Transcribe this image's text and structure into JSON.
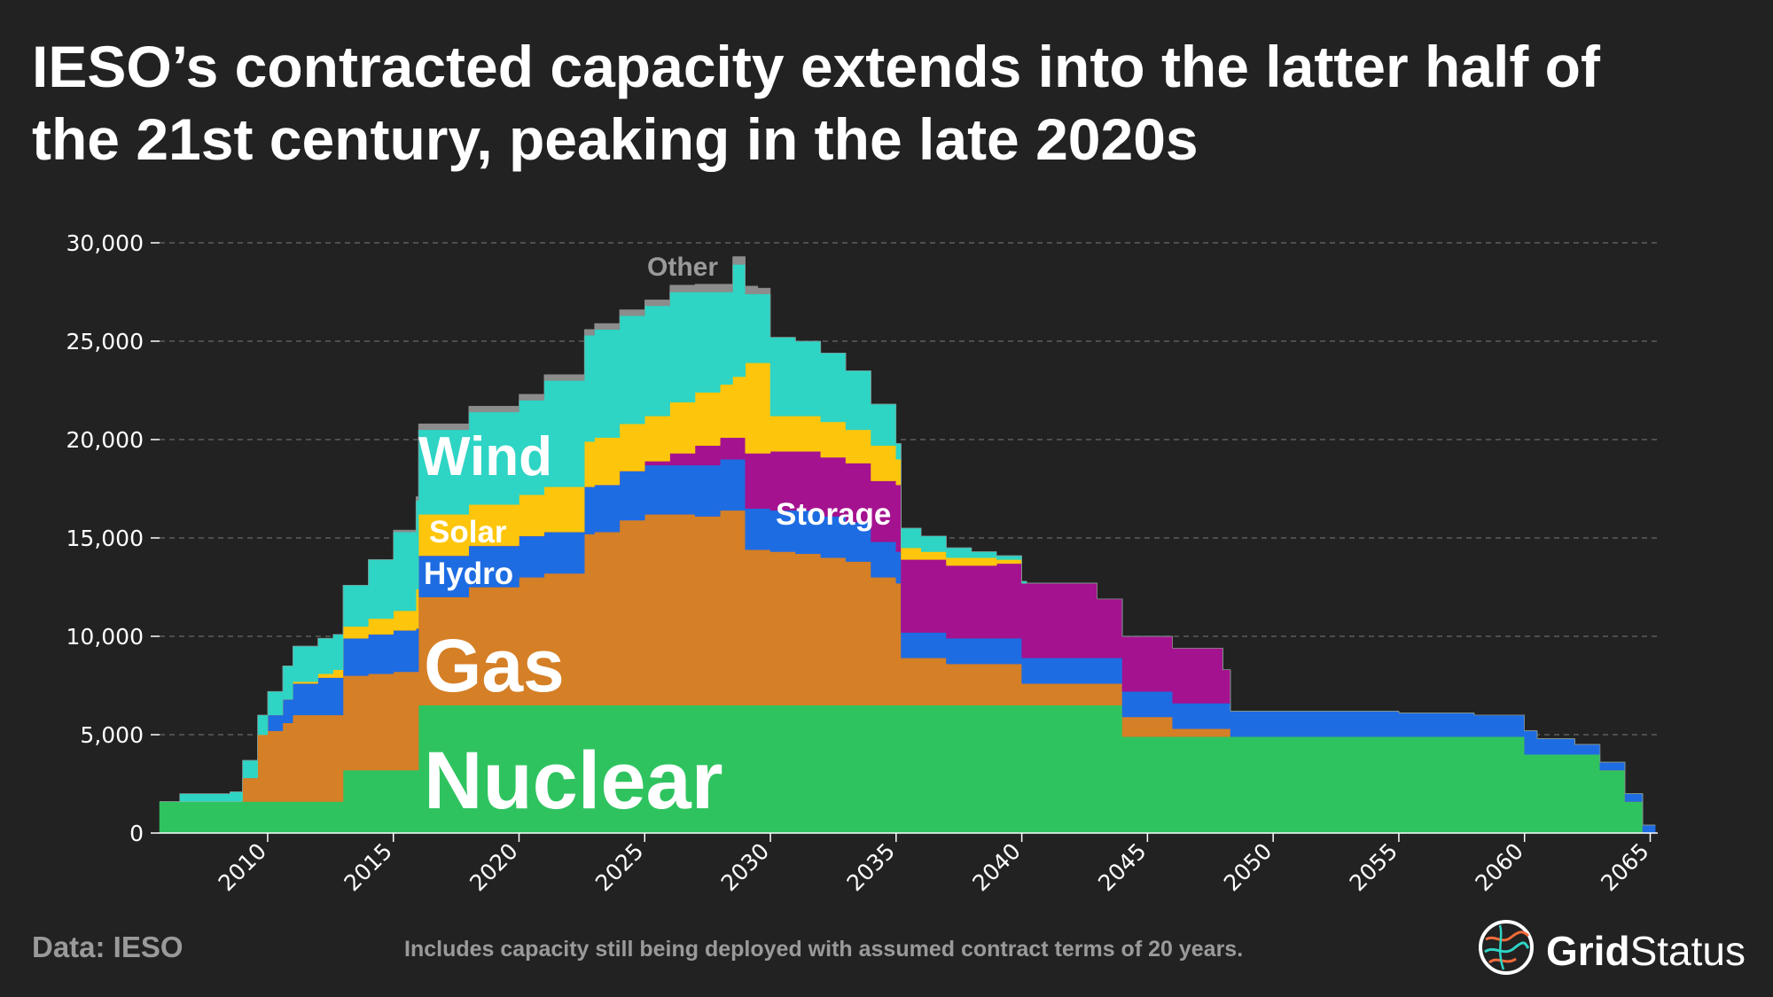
{
  "title": {
    "line1": "IESO’s contracted capacity extends into the latter half of",
    "line2": "the 21st century, peaking in the late 2020s"
  },
  "footer": {
    "source": "Data: IESO",
    "note": "Includes capacity still being deployed with assumed contract terms of 20 years."
  },
  "logo": {
    "word_bold": "Grid",
    "word_light": "Status",
    "icon": "grid-status-logo-icon"
  },
  "chart_data": {
    "type": "area",
    "title": "IESO’s contracted capacity extends into the latter half of the 21st century, peaking in the late 2020s",
    "xlabel": "",
    "ylabel": "",
    "xlim": [
      2005.7,
      2065.3
    ],
    "ylim": [
      0,
      30000
    ],
    "grid": true,
    "stacked": true,
    "step": true,
    "x_ticks": [
      2010,
      2015,
      2020,
      2025,
      2030,
      2035,
      2040,
      2045,
      2050,
      2055,
      2060,
      2065
    ],
    "x_tick_labels": [
      "2010",
      "2015",
      "2020",
      "2025",
      "2030",
      "2035",
      "2040",
      "2045",
      "2050",
      "2055",
      "2060",
      "2065"
    ],
    "y_ticks": [
      0,
      5000,
      10000,
      15000,
      20000,
      25000,
      30000
    ],
    "y_tick_labels": [
      "0",
      "5,000",
      "10,000",
      "15,000",
      "20,000",
      "25,000",
      "30,000"
    ],
    "x": [
      2005.7,
      2006.5,
      2008.5,
      2009.0,
      2009.6,
      2010.0,
      2010.6,
      2011.0,
      2012.0,
      2012.6,
      2013.0,
      2014.0,
      2015.0,
      2015.9,
      2016.0,
      2018.0,
      2020.0,
      2021.0,
      2022.0,
      2022.6,
      2023.0,
      2024.0,
      2025.0,
      2026.0,
      2027.0,
      2028.0,
      2028.5,
      2029.0,
      2029.5,
      2030.0,
      2031.0,
      2032.0,
      2033.0,
      2034.0,
      2035.0,
      2035.2,
      2036.0,
      2037.0,
      2038.0,
      2039.0,
      2040.0,
      2040.2,
      2041.0,
      2043.0,
      2044.0,
      2046.0,
      2048.0,
      2048.3,
      2050.0,
      2052.0,
      2055.0,
      2058.0,
      2059.0,
      2060.0,
      2060.5,
      2062.0,
      2063.0,
      2063.4,
      2064.0,
      2064.7,
      2065.2
    ],
    "series": [
      {
        "name": "Nuclear",
        "label": "Nuclear",
        "color": "#2fc35f",
        "values": [
          1600,
          1600,
          1600,
          1600,
          1600,
          1600,
          1600,
          1600,
          1600,
          1600,
          3200,
          3200,
          3200,
          3200,
          6500,
          6500,
          6500,
          6500,
          6500,
          6500,
          6500,
          6500,
          6500,
          6500,
          6500,
          6500,
          6500,
          6500,
          6500,
          6500,
          6500,
          6500,
          6500,
          6500,
          6500,
          6500,
          6500,
          6500,
          6500,
          6500,
          6500,
          6500,
          6500,
          6500,
          4900,
          4900,
          4900,
          4900,
          4900,
          4900,
          4900,
          4900,
          4900,
          4000,
          4000,
          4000,
          3200,
          3200,
          1600,
          0,
          0
        ]
      },
      {
        "name": "Gas",
        "label": "Gas",
        "color": "#d57f26",
        "values": [
          0,
          0,
          0,
          1200,
          3400,
          3600,
          4000,
          4400,
          4400,
          4400,
          4800,
          4900,
          5000,
          5000,
          5500,
          6000,
          6500,
          6700,
          6700,
          8700,
          8800,
          9400,
          9700,
          9700,
          9600,
          9900,
          9900,
          7900,
          7900,
          7800,
          7700,
          7500,
          7300,
          6500,
          6200,
          2400,
          2400,
          2100,
          2100,
          2100,
          1100,
          1100,
          1100,
          1100,
          1000,
          400,
          400,
          0,
          0,
          0,
          0,
          0,
          0,
          0,
          0,
          0,
          0,
          0,
          0,
          0,
          0
        ]
      },
      {
        "name": "Hydro",
        "label": "Hydro",
        "color": "#1e6ce2",
        "values": [
          0,
          0,
          0,
          0,
          0,
          800,
          1200,
          1600,
          1900,
          1900,
          1900,
          2000,
          2100,
          2200,
          2100,
          2100,
          2100,
          2100,
          2100,
          2400,
          2400,
          2500,
          2500,
          2500,
          2600,
          2600,
          2600,
          2100,
          2100,
          2100,
          2200,
          2100,
          2000,
          1800,
          1600,
          1300,
          1300,
          1300,
          1300,
          1300,
          1300,
          1300,
          1300,
          1300,
          1300,
          1300,
          1300,
          1300,
          1300,
          1300,
          1200,
          1100,
          1100,
          1200,
          800,
          500,
          400,
          400,
          400,
          400,
          200
        ]
      },
      {
        "name": "Storage",
        "label": "Storage",
        "color": "#a4128f",
        "values": [
          0,
          0,
          0,
          0,
          0,
          0,
          0,
          0,
          0,
          0,
          0,
          0,
          0,
          0,
          0,
          0,
          0,
          0,
          0,
          0,
          0,
          0,
          200,
          600,
          1000,
          1100,
          1100,
          2800,
          2800,
          3000,
          3000,
          3000,
          3000,
          3100,
          3400,
          3700,
          3700,
          3700,
          3700,
          3800,
          3800,
          3800,
          3800,
          3000,
          2800,
          2800,
          1700,
          0,
          0,
          0,
          0,
          0,
          0,
          0,
          0,
          0,
          0,
          0,
          0,
          0,
          0
        ]
      },
      {
        "name": "Solar",
        "label": "Solar",
        "color": "#fdc60c",
        "values": [
          0,
          0,
          0,
          0,
          0,
          0,
          0,
          100,
          200,
          400,
          600,
          800,
          1000,
          2000,
          2100,
          2100,
          2100,
          2300,
          2300,
          2300,
          2400,
          2400,
          2300,
          2600,
          2700,
          2700,
          3100,
          4600,
          4600,
          1800,
          1800,
          1800,
          1700,
          1800,
          1300,
          600,
          400,
          400,
          400,
          200,
          0,
          0,
          0,
          0,
          0,
          0,
          0,
          0,
          0,
          0,
          0,
          0,
          0,
          0,
          0,
          0,
          0,
          0,
          0,
          0,
          0
        ]
      },
      {
        "name": "Wind",
        "label": "Wind",
        "color": "#2ed4c4",
        "values": [
          0,
          400,
          500,
          900,
          1000,
          1200,
          1700,
          1800,
          1800,
          1800,
          2100,
          3000,
          4000,
          4500,
          4300,
          4700,
          4800,
          5400,
          5400,
          5400,
          5500,
          5500,
          5600,
          5600,
          5100,
          4700,
          5700,
          3500,
          3500,
          4000,
          3800,
          3500,
          3000,
          2100,
          800,
          1000,
          800,
          500,
          300,
          200,
          100,
          0,
          0,
          0,
          0,
          0,
          0,
          0,
          0,
          0,
          0,
          0,
          0,
          0,
          0,
          0,
          0,
          0,
          0,
          0,
          0
        ]
      },
      {
        "name": "Other",
        "label": "Other",
        "color": "#8c8c8c",
        "values": [
          0,
          0,
          0,
          0,
          0,
          0,
          0,
          0,
          0,
          0,
          0,
          0,
          100,
          200,
          300,
          300,
          300,
          300,
          300,
          300,
          300,
          300,
          300,
          350,
          400,
          400,
          400,
          400,
          300,
          0,
          0,
          0,
          0,
          0,
          0,
          0,
          0,
          0,
          0,
          0,
          0,
          0,
          0,
          0,
          0,
          0,
          0,
          0,
          0,
          0,
          0,
          0,
          0,
          0,
          0,
          0,
          0,
          0,
          0,
          0,
          0
        ]
      }
    ],
    "annotations": [
      {
        "series": "Nuclear",
        "text": "Nuclear"
      },
      {
        "series": "Gas",
        "text": "Gas"
      },
      {
        "series": "Hydro",
        "text": "Hydro"
      },
      {
        "series": "Solar",
        "text": "Solar"
      },
      {
        "series": "Wind",
        "text": "Wind"
      },
      {
        "series": "Storage",
        "text": "Storage"
      },
      {
        "series": "Other",
        "text": "Other"
      }
    ]
  }
}
